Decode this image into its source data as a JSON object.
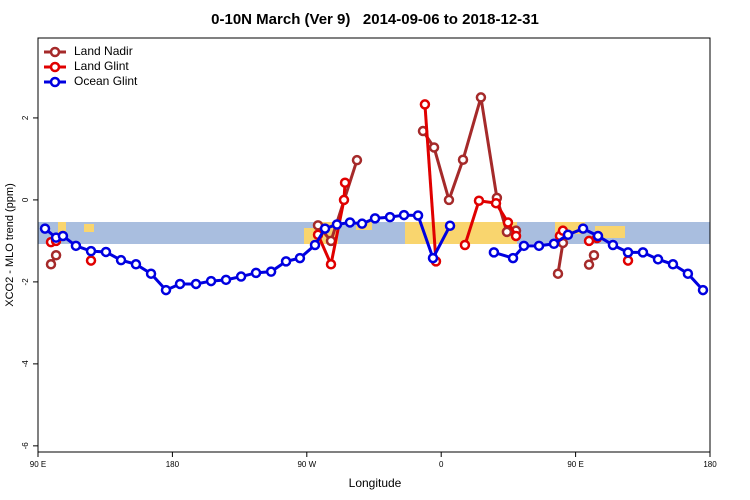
{
  "chart_data": {
    "type": "line",
    "title": "0-10N March (Ver 9)   2014-09-06 to 2018-12-31",
    "x_label": "Longitude",
    "y_label": "XCO2 - MLO trend (ppm)",
    "xlim": [
      90,
      540
    ],
    "ylim": [
      -6.15,
      3.95
    ],
    "xticks": [
      {
        "value": 90,
        "label": "90 E"
      },
      180,
      {
        "value": 270,
        "label": "90 W"
      },
      {
        "value": 360,
        "label": "0"
      },
      {
        "value": 450,
        "label": "90 E"
      },
      {
        "value": 540,
        "label": "180"
      }
    ],
    "yticks": [
      -6,
      -4,
      -2,
      0,
      2
    ],
    "legend": "top-left",
    "series": [
      {
        "name": "Land Nadir",
        "color": "#a52a2a",
        "x": [
          98.7,
          102.1,
          null,
          277.5,
          286.2,
          303.6,
          null,
          347.8,
          355.2,
          365.2,
          374.6,
          386.6,
          397.3,
          404,
          410.1,
          null,
          438.2,
          441.5,
          null,
          459,
          462.3
        ],
        "values": [
          -1.57,
          -1.35,
          null,
          -0.62,
          -1.0,
          0.97,
          null,
          1.68,
          1.28,
          0.0,
          0.98,
          2.5,
          0.05,
          -0.78,
          -0.75,
          null,
          -1.8,
          -1.05,
          null,
          -1.58,
          -1.35
        ]
      },
      {
        "name": "Land Glint",
        "color": "#e00000",
        "x": [
          98.7,
          102.1,
          null,
          125.5,
          null,
          277.5,
          286.2,
          294.9,
          295.6,
          null,
          349.1,
          356.5,
          null,
          375.9,
          385.3,
          396.7,
          404.7,
          410.1,
          null,
          439.5,
          441.5,
          null,
          459,
          464.3,
          null,
          485.1
        ],
        "values": [
          -1.03,
          -1.0,
          null,
          -1.48,
          null,
          -0.85,
          -1.57,
          0.0,
          0.42,
          null,
          2.33,
          -1.5,
          null,
          -1.1,
          -0.02,
          -0.08,
          -0.55,
          -0.88,
          null,
          -0.88,
          -0.75,
          null,
          -1.0,
          -0.93,
          null,
          -1.48
        ]
      },
      {
        "name": "Ocean Glint",
        "color": "#0000e0",
        "x": [
          94.7,
          102.1,
          106.7,
          115.4,
          125.5,
          135.5,
          145.6,
          155.6,
          165.7,
          175.7,
          185.1,
          195.8,
          205.9,
          215.9,
          226,
          236,
          246.1,
          256.1,
          265.4,
          275.5,
          282.2,
          290.2,
          298.9,
          307,
          315.7,
          325.7,
          335.1,
          344.5,
          354.5,
          365.9,
          null,
          395.3,
          408.1,
          415.4,
          425.5,
          435.5,
          444.9,
          455,
          465,
          475,
          485.1,
          495.1,
          505.2,
          515.2,
          525.2,
          535.3
        ],
        "values": [
          -0.7,
          -0.92,
          -0.88,
          -1.12,
          -1.25,
          -1.27,
          -1.47,
          -1.57,
          -1.8,
          -2.2,
          -2.05,
          -2.05,
          -1.98,
          -1.95,
          -1.87,
          -1.78,
          -1.75,
          -1.5,
          -1.42,
          -1.1,
          -0.7,
          -0.6,
          -0.55,
          -0.58,
          -0.45,
          -0.42,
          -0.37,
          -0.38,
          -1.42,
          -0.63,
          null,
          -1.28,
          -1.42,
          -1.12,
          -1.12,
          -1.07,
          -0.85,
          -0.7,
          -0.88,
          -1.1,
          -1.28,
          -1.28,
          -1.45,
          -1.57,
          -1.8,
          -2.2
        ]
      }
    ]
  }
}
